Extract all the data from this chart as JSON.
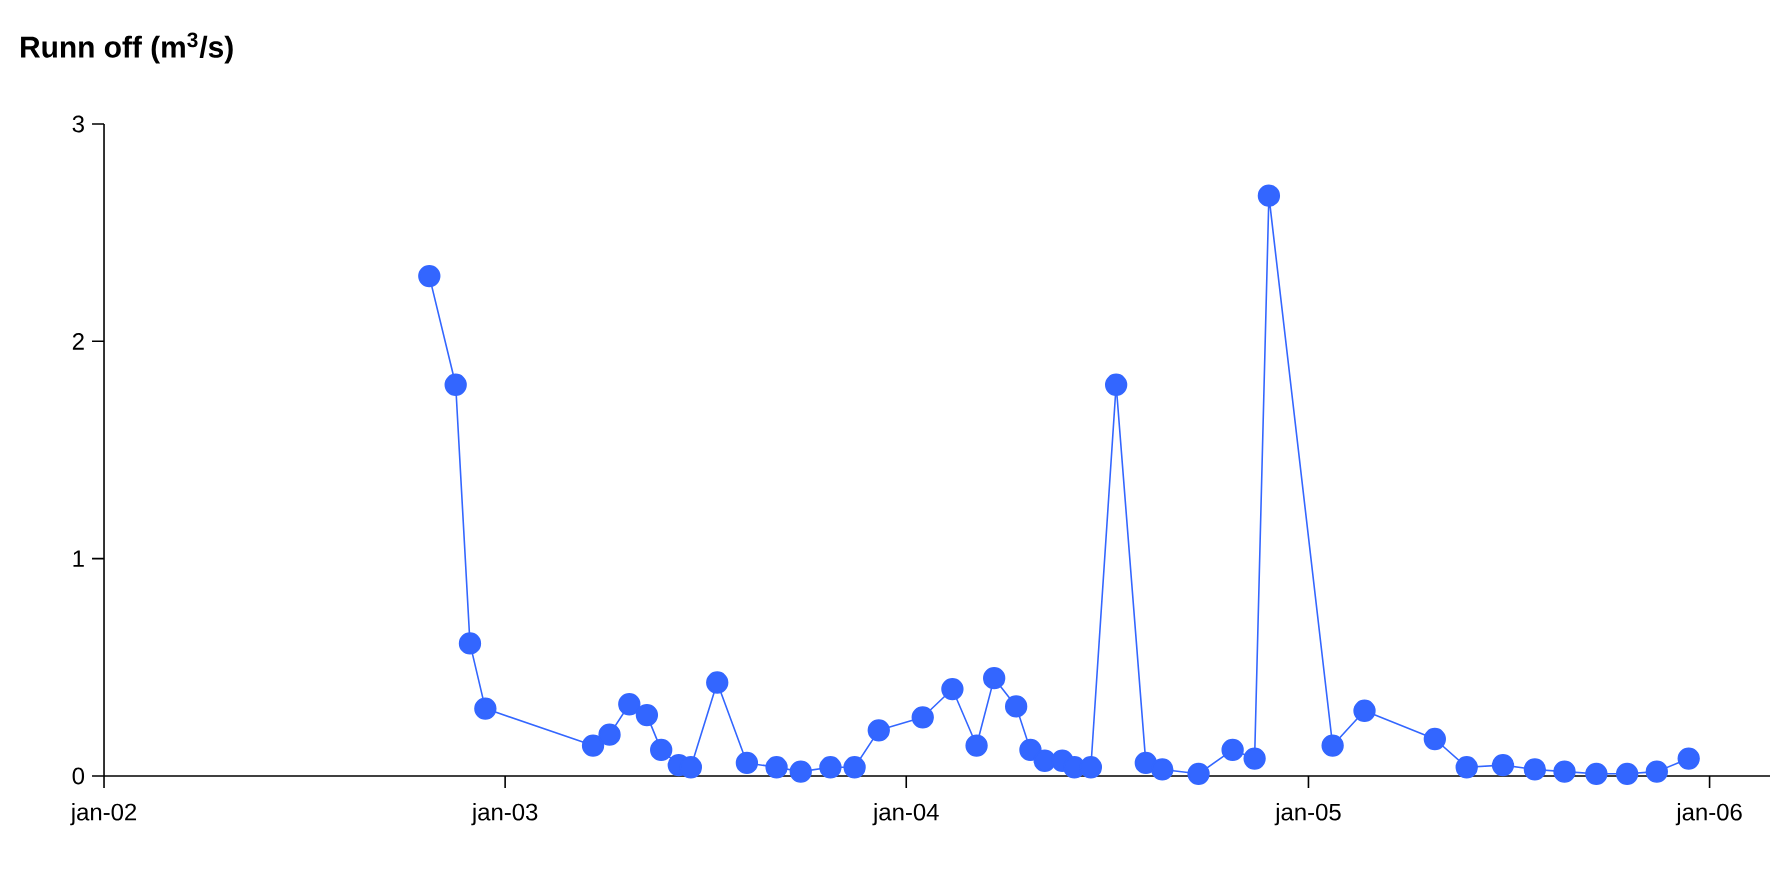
{
  "chart_data": {
    "type": "line",
    "title": "Runn off (m$^{3}$/s)",
    "x": [
      "2002-10-24",
      "2002-11-17",
      "2002-11-30",
      "2002-12-14",
      "2003-03-22",
      "2003-04-06",
      "2003-04-24",
      "2003-05-10",
      "2003-05-23",
      "2003-06-08",
      "2003-06-19",
      "2003-07-13",
      "2003-08-09",
      "2003-09-05",
      "2003-09-27",
      "2003-10-24",
      "2003-11-15",
      "2003-12-07",
      "2004-01-16",
      "2004-02-12",
      "2004-03-05",
      "2004-03-21",
      "2004-04-10",
      "2004-04-23",
      "2004-05-06",
      "2004-05-22",
      "2004-06-02",
      "2004-06-17",
      "2004-07-10",
      "2004-08-06",
      "2004-08-21",
      "2004-09-23",
      "2004-10-24",
      "2004-11-13",
      "2004-11-26",
      "2005-01-23",
      "2005-02-21",
      "2005-04-26",
      "2005-05-25",
      "2005-06-27",
      "2005-07-26",
      "2005-08-22",
      "2005-09-20",
      "2005-10-18",
      "2005-11-14",
      "2005-12-13"
    ],
    "series": [
      {
        "color": "#3366ff",
        "values": [
          2.3,
          1.8,
          0.61,
          0.31,
          0.14,
          0.19,
          0.33,
          0.28,
          0.12,
          0.05,
          0.04,
          0.43,
          0.06,
          0.04,
          0.02,
          0.04,
          0.04,
          0.21,
          0.27,
          0.4,
          0.14,
          0.45,
          0.32,
          0.12,
          0.07,
          0.07,
          0.04,
          0.04,
          1.8,
          0.06,
          0.03,
          0.01,
          0.12,
          0.08,
          2.67,
          0.14,
          0.3,
          0.17,
          0.04,
          0.05,
          0.03,
          0.02,
          0.01,
          0.01,
          0.02,
          0.08
        ]
      }
    ],
    "xlim": [
      "2002-01-01",
      "2006-02-25"
    ],
    "xticks": [
      {
        "value": "2002-01-01",
        "label": "jan-02"
      },
      {
        "value": "2003-01-01",
        "label": "jan-03"
      },
      {
        "value": "2004-01-01",
        "label": "jan-04"
      },
      {
        "value": "2005-01-01",
        "label": "jan-05"
      },
      {
        "value": "2006-01-01",
        "label": "jan-06"
      }
    ],
    "ylim": [
      0,
      3
    ],
    "yticks": [
      0,
      1,
      2,
      3
    ],
    "grid": false,
    "marker": "circle",
    "line_style": "solid"
  }
}
